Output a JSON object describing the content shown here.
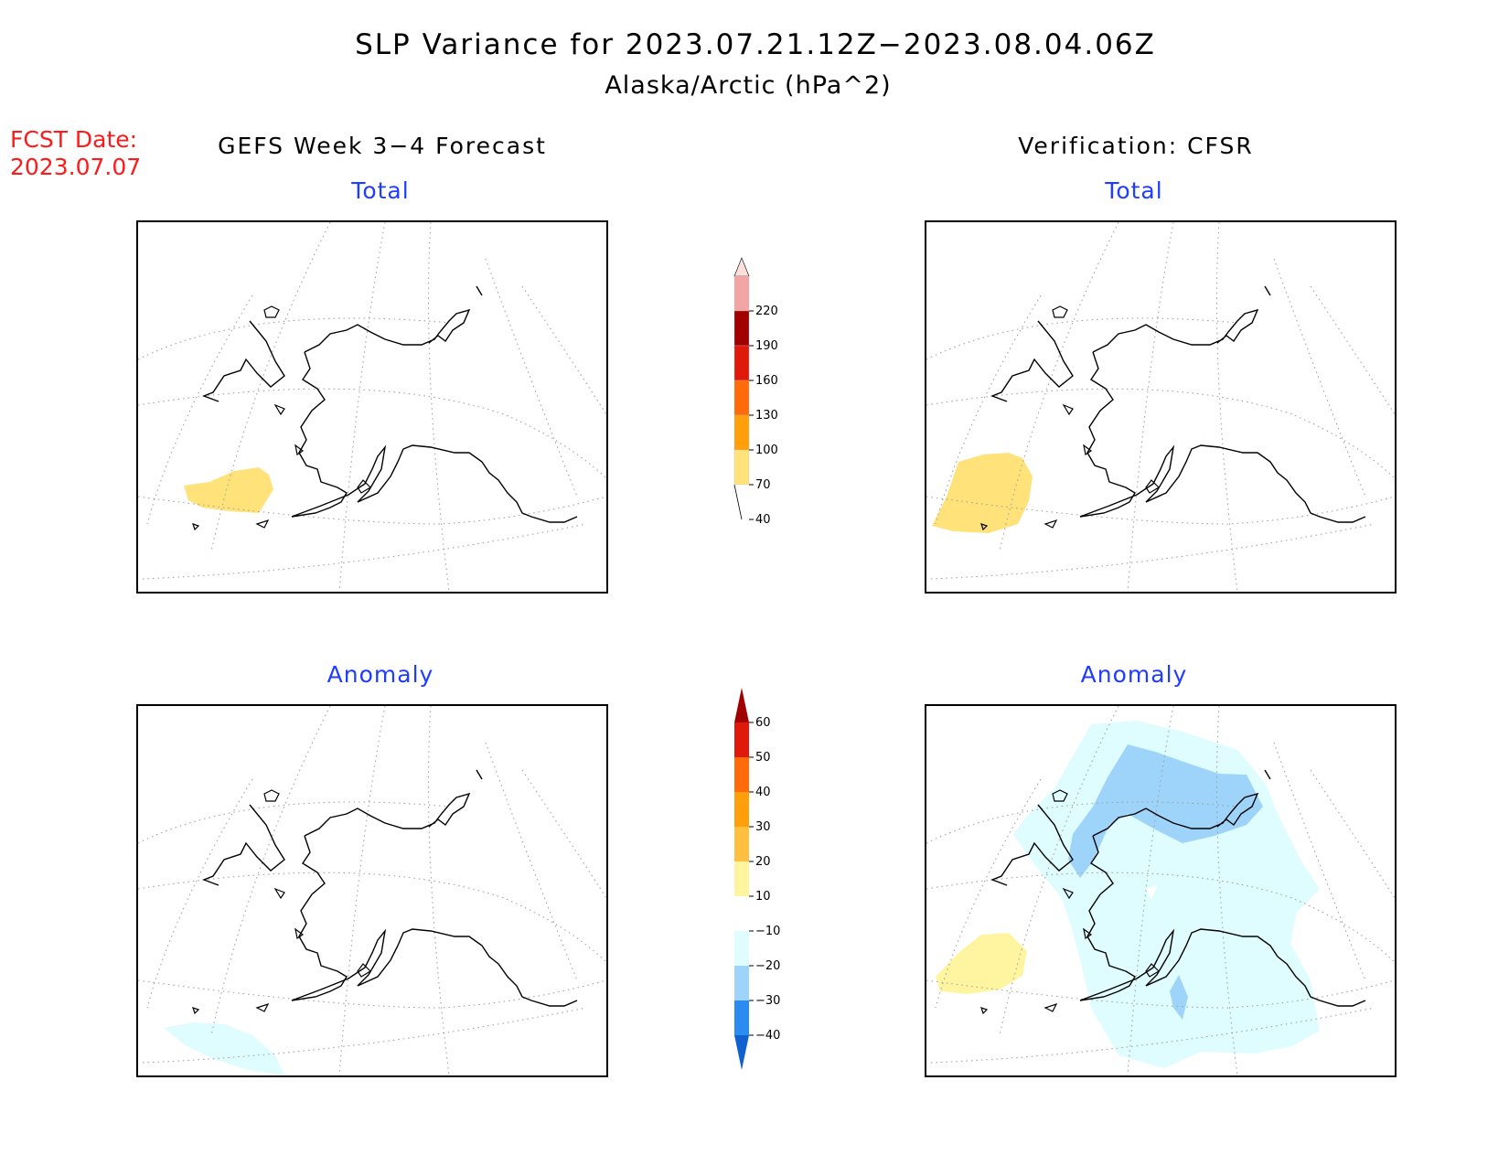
{
  "title": "SLP Variance for 2023.07.21.12Z−2023.08.04.06Z",
  "subtitle": "Alaska/Arctic (hPa^2)",
  "fcst_label": "FCST Date:",
  "fcst_date": "2023.07.07",
  "left_header": "GEFS Week 3−4 Forecast",
  "right_header": "Verification: CFSR",
  "panels": {
    "top_left": "Total",
    "top_right": "Total",
    "bottom_left": "Anomaly",
    "bottom_right": "Anomaly"
  },
  "total_colorbar": {
    "labels": [
      "220",
      "190",
      "160",
      "130",
      "100",
      "70",
      "40"
    ],
    "colors": [
      "#fde0dc",
      "#f3a5a5",
      "#a00000",
      "#e01a0a",
      "#ff6a0a",
      "#ffa00a",
      "#ffe27a"
    ]
  },
  "anomaly_colorbar": {
    "labels": [
      "60",
      "50",
      "40",
      "30",
      "20",
      "10",
      "−10",
      "−20",
      "−30",
      "−40"
    ],
    "colors": [
      "#a00000",
      "#e01a0a",
      "#ff6a0a",
      "#ffa00a",
      "#ffc040",
      "#fff5a0",
      "#ffffff",
      "#dffcff",
      "#9ed4fa",
      "#2a8cf0",
      "#1060d0"
    ]
  }
}
